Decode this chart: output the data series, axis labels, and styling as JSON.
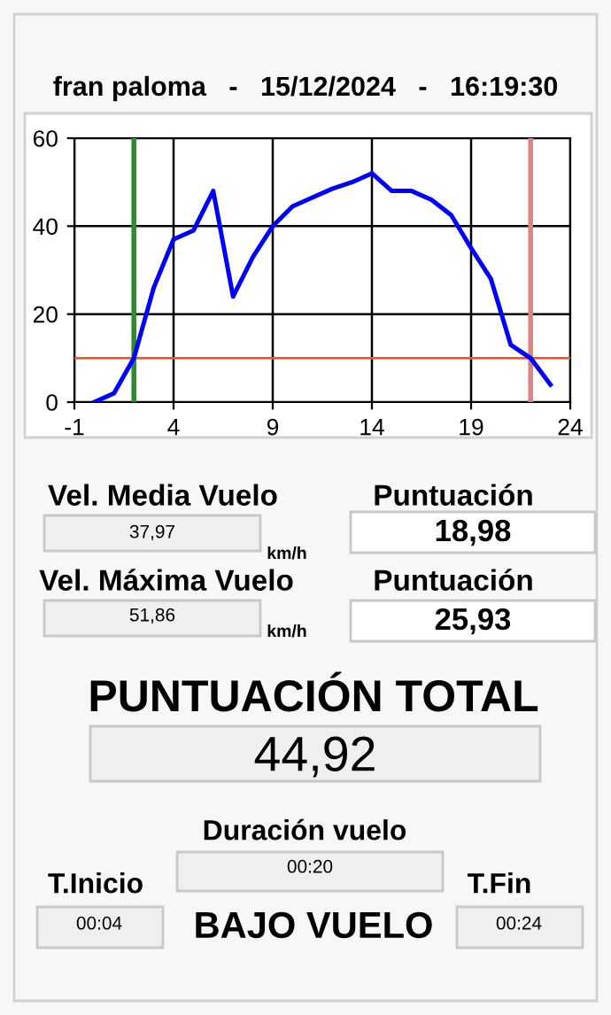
{
  "chart_data": [
    {
      "type": "line",
      "title": "fran paloma   -   15/12/2024   -   16:19:30",
      "x": [
        0,
        1,
        2,
        3,
        4,
        5,
        6,
        7,
        8,
        9,
        10,
        11,
        12,
        13,
        14,
        15,
        16,
        17,
        18,
        19,
        20,
        21,
        22,
        23
      ],
      "series": [
        {
          "color": "#0000ff",
          "values": [
            0,
            2,
            10,
            26,
            37,
            39,
            48,
            24,
            33,
            40,
            44.5,
            46.5,
            48.5,
            50,
            52,
            48,
            48,
            46,
            42.5,
            35,
            28,
            13,
            10,
            4
          ]
        }
      ],
      "xlim": [
        -1,
        24
      ],
      "xticks": [
        -1,
        4,
        9,
        14,
        19,
        24
      ],
      "ylim": [
        0,
        60
      ],
      "yticks": [
        0,
        20,
        40,
        60
      ],
      "grid": true,
      "marker": "none",
      "line_style": "solid",
      "ref_lines": [
        {
          "axis": "x",
          "value": 2,
          "color": "#2e8b2e"
        },
        {
          "axis": "x",
          "value": 22,
          "color": "#d98585"
        },
        {
          "axis": "y",
          "value": 10,
          "color": "#f05a28"
        }
      ]
    },
    {
      "type": "other",
      "annotations": [
        "Vel. Media Vuelo",
        "37,97",
        "km/h",
        "Puntuación",
        "18,98",
        "Vel. Máxima Vuelo",
        "51,86",
        "km/h",
        "Puntuación",
        "25,93",
        "PUNTUACIÓN TOTAL",
        "44,92",
        "Duración vuelo",
        "00:20",
        "T.Inicio",
        "00:04",
        "BAJO VUELO",
        "T.Fin",
        "00:24"
      ]
    }
  ]
}
